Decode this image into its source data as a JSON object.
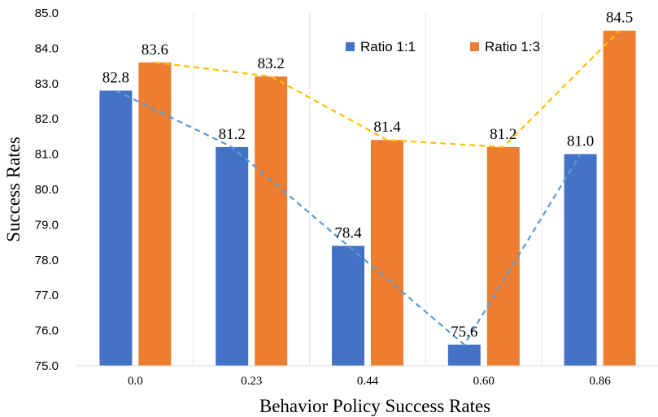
{
  "chart_data": {
    "type": "bar",
    "title": "",
    "xlabel": "Behavior Policy Success Rates",
    "ylabel": "Success Rates",
    "categories": [
      "0.0",
      "0.23",
      "0.44",
      "0.60",
      "0.86"
    ],
    "ylim": [
      75.0,
      85.0
    ],
    "yticks": [
      "75.0",
      "76.0",
      "77.0",
      "78.0",
      "79.0",
      "80.0",
      "81.0",
      "82.0",
      "83.0",
      "84.0",
      "85.0"
    ],
    "grid": "vertical",
    "legend_position": "top-right",
    "series": [
      {
        "name": "Ratio 1:1",
        "values": [
          82.8,
          81.2,
          78.4,
          75.6,
          81.0
        ],
        "labels": [
          "82.8",
          "81.2",
          "78.4",
          "75.6",
          "81.0"
        ],
        "color": "#4472C4",
        "trend_color": "#5B9BD5"
      },
      {
        "name": "Ratio 1:3",
        "values": [
          83.6,
          83.2,
          81.4,
          81.2,
          84.5
        ],
        "labels": [
          "83.6",
          "83.2",
          "81.4",
          "81.2",
          "84.5"
        ],
        "color": "#ED7D31",
        "trend_color": "#FFC000"
      }
    ]
  }
}
